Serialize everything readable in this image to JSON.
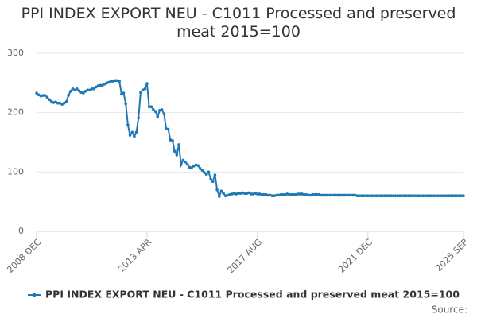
{
  "chart_data": {
    "type": "line",
    "title": "PPI INDEX EXPORT NEU - C1011 Processed and preserved meat 2015=100",
    "source": "Source:",
    "categories": [
      "2008 DEC",
      null,
      null,
      null,
      null,
      null,
      null,
      null,
      null,
      null,
      null,
      null,
      null,
      null,
      null,
      null,
      null,
      null,
      null,
      null,
      null,
      null,
      null,
      null,
      null,
      null,
      null,
      null,
      null,
      null,
      null,
      null,
      null,
      null,
      null,
      null,
      null,
      null,
      null,
      null,
      null,
      null,
      null,
      null,
      null,
      null,
      null,
      null,
      null,
      null,
      null,
      null,
      "2013 APR",
      null,
      null,
      null,
      null,
      null,
      null,
      null,
      null,
      null,
      null,
      null,
      null,
      null,
      null,
      null,
      null,
      null,
      null,
      null,
      null,
      null,
      null,
      null,
      null,
      null,
      null,
      null,
      null,
      null,
      null,
      null,
      null,
      null,
      null,
      null,
      null,
      null,
      null,
      null,
      null,
      null,
      null,
      null,
      null,
      null,
      null,
      null,
      null,
      null,
      null,
      null,
      "2017 AUG",
      null,
      null,
      null,
      null,
      null,
      null,
      null,
      null,
      null,
      null,
      null,
      null,
      null,
      null,
      null,
      null,
      null,
      null,
      null,
      null,
      null,
      null,
      null,
      null,
      null,
      null,
      null,
      null,
      null,
      null,
      null,
      null,
      null,
      null,
      null,
      null,
      null,
      null,
      null,
      null,
      null,
      null,
      null,
      null,
      null,
      null,
      null,
      null,
      null,
      null,
      null,
      "2021 DEC",
      null,
      null,
      null,
      null,
      null,
      null,
      null,
      null,
      null,
      null,
      null,
      null,
      null,
      null,
      null,
      null,
      null,
      null,
      null,
      null,
      null,
      null,
      null,
      null,
      null,
      null,
      null,
      null,
      null,
      null,
      null,
      null,
      null,
      null,
      null,
      null,
      null,
      null,
      null,
      null,
      null,
      null,
      null,
      null,
      "2025 SEP"
    ],
    "series": [
      {
        "name": "PPI INDEX EXPORT NEU - C1011 Processed and preserved meat 2015=100",
        "color": "#1f78b4",
        "values": [
          233,
          230,
          228,
          229,
          229,
          226,
          222,
          219,
          217,
          218,
          216,
          216,
          214,
          216,
          218,
          229,
          236,
          240,
          238,
          240,
          237,
          234,
          233,
          236,
          238,
          238,
          240,
          240,
          243,
          245,
          246,
          246,
          248,
          250,
          251,
          253,
          253,
          254,
          254,
          253,
          231,
          233,
          215,
          179,
          162,
          167,
          160,
          167,
          191,
          234,
          238,
          240,
          249,
          210,
          210,
          205,
          202,
          193,
          204,
          205,
          198,
          173,
          172,
          154,
          153,
          135,
          129,
          146,
          112,
          120,
          117,
          113,
          108,
          107,
          110,
          112,
          111,
          106,
          103,
          99,
          96,
          100,
          88,
          84,
          95,
          70,
          59,
          68,
          64,
          60,
          61,
          62,
          63,
          64,
          63,
          64,
          64,
          65,
          64,
          64,
          65,
          63,
          63,
          64,
          63,
          63,
          62,
          62,
          62,
          61,
          61,
          60,
          60,
          61,
          61,
          62,
          62,
          62,
          63,
          62,
          62,
          62,
          62,
          63,
          63,
          63,
          62,
          62,
          61,
          61,
          62,
          62,
          62,
          62,
          61,
          61,
          61,
          61,
          61,
          61,
          61,
          61,
          61,
          61,
          61,
          61,
          61,
          61,
          61,
          61,
          61,
          60,
          60,
          60,
          60,
          60,
          60,
          60,
          60,
          60,
          60,
          60,
          60,
          60,
          60,
          60,
          60,
          60,
          60,
          60,
          60,
          60,
          60,
          60,
          60,
          60,
          60,
          60,
          60,
          60,
          60,
          60,
          60,
          60,
          60,
          60,
          60,
          60,
          60,
          60,
          60,
          60,
          60,
          60,
          60,
          60,
          60,
          60,
          60,
          60,
          60,
          60
        ]
      }
    ],
    "ylim": [
      0,
      300
    ],
    "yticks": [
      0,
      100,
      200,
      300
    ],
    "grid": true
  }
}
